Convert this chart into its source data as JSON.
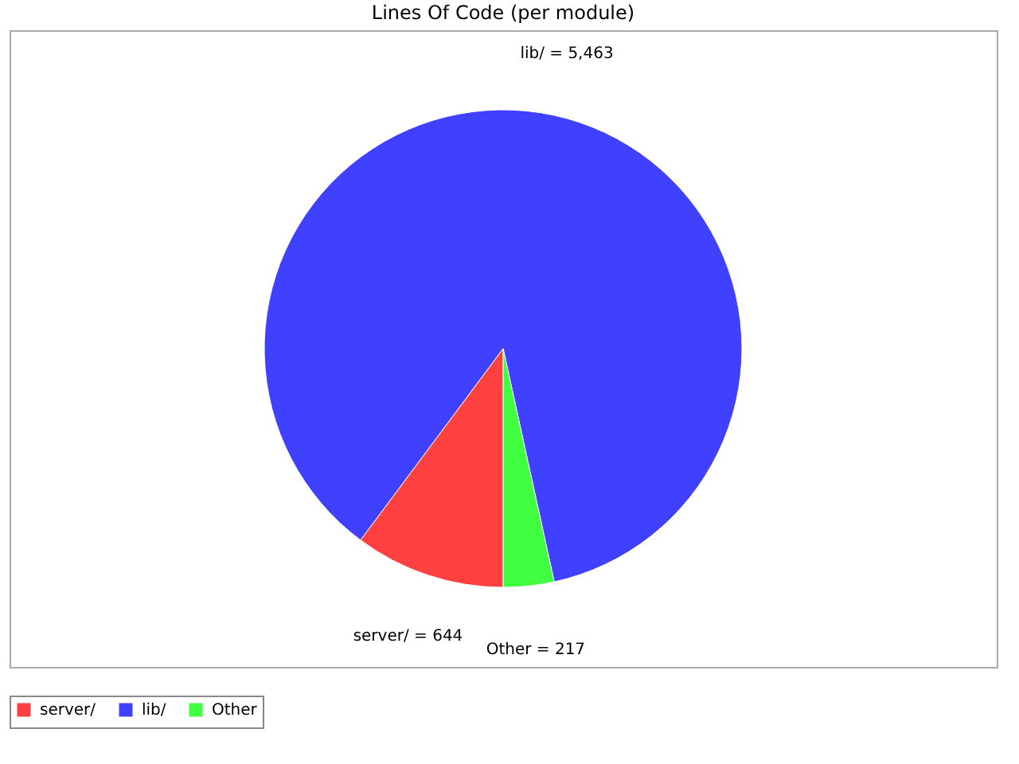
{
  "chart_data": {
    "type": "pie",
    "title": "Lines Of Code (per module)",
    "categories": [
      "server/",
      "lib/",
      "Other"
    ],
    "values": [
      644,
      5463,
      217
    ],
    "colors": [
      "#ff4040",
      "#4040ff",
      "#40ff40"
    ],
    "value_labels": [
      "server/ = 644",
      "lib/ = 5,463",
      "Other = 217"
    ],
    "legend": "bottom"
  }
}
